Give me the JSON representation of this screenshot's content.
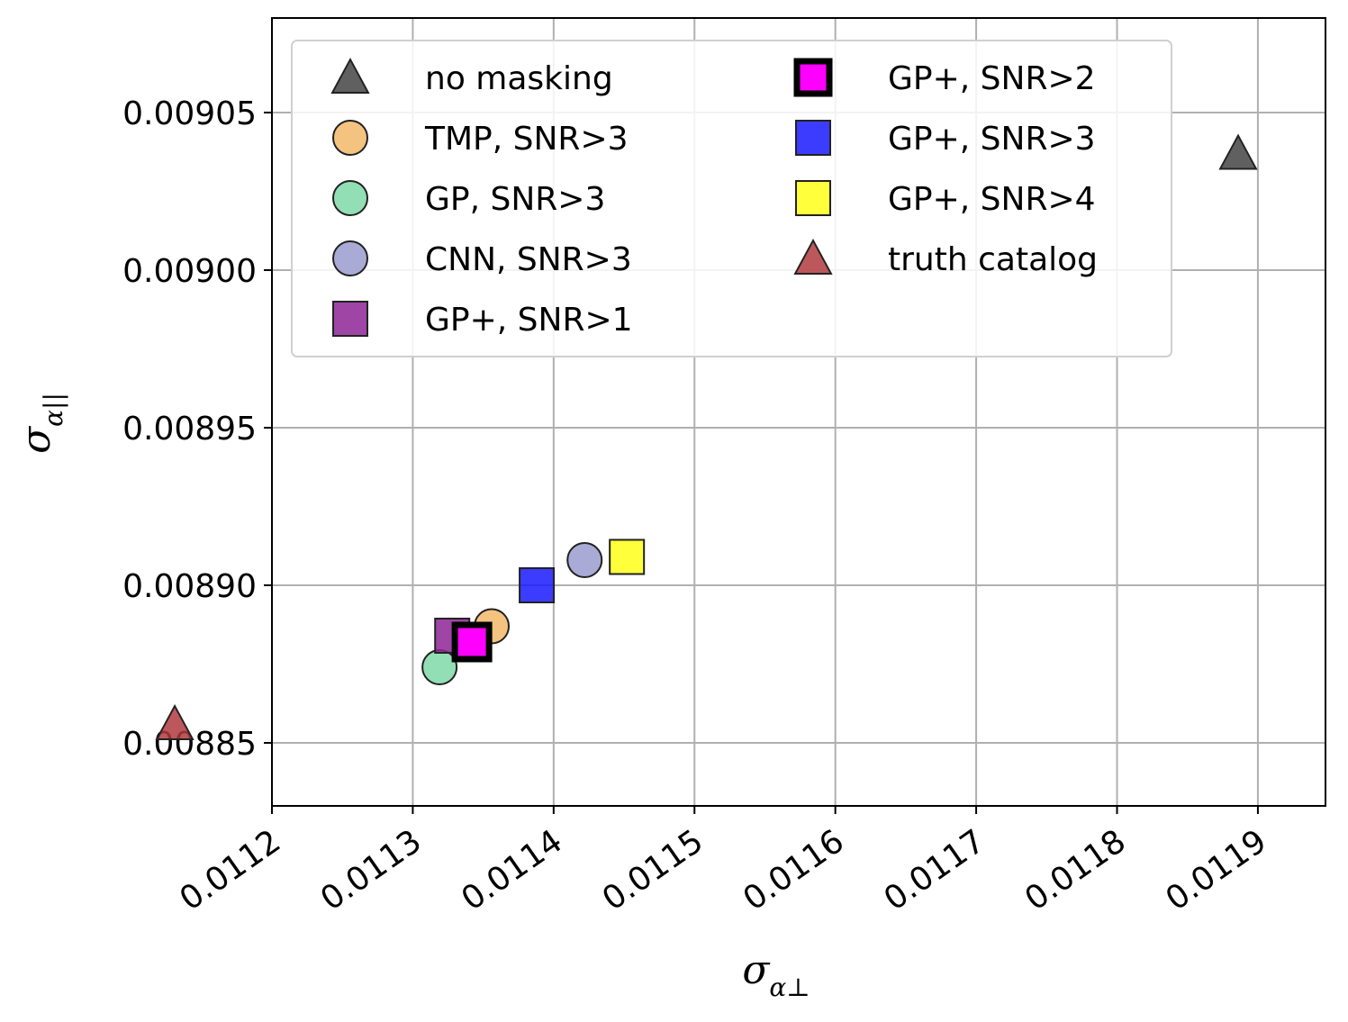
{
  "chart_data": {
    "type": "scatter",
    "xlabel": "σ",
    "xlabel_sub": "α⊥",
    "ylabel": "σ",
    "ylabel_sub": "α||",
    "xlim": [
      0.0112,
      0.011948
    ],
    "ylim": [
      0.00883,
      0.00908
    ],
    "x_ticks": [
      0.0112,
      0.0113,
      0.0114,
      0.0115,
      0.0116,
      0.0117,
      0.0118,
      0.0119
    ],
    "x_tick_labels": [
      "0.0112",
      "0.0113",
      "0.0114",
      "0.0115",
      "0.0116",
      "0.0117",
      "0.0118",
      "0.0119"
    ],
    "y_ticks": [
      0.00885,
      0.0089,
      0.00895,
      0.009,
      0.00905
    ],
    "y_tick_labels": [
      "0.00885",
      "0.00890",
      "0.00895",
      "0.00900",
      "0.00905"
    ],
    "grid": true,
    "legend_position": "top-left",
    "legend_columns": 2,
    "series": [
      {
        "name": "no masking",
        "marker": "triangle",
        "color": "#444444",
        "x": 0.011886,
        "y": 0.009037
      },
      {
        "name": "TMP, SNR>3",
        "marker": "circle",
        "color": "#F2B96A",
        "x": 0.011356,
        "y": 0.008887
      },
      {
        "name": "GP, SNR>3",
        "marker": "circle",
        "color": "#7FD9A8",
        "x": 0.011319,
        "y": 0.008874
      },
      {
        "name": "CNN, SNR>3",
        "marker": "circle",
        "color": "#9B9BD0",
        "x": 0.011422,
        "y": 0.008908
      },
      {
        "name": "GP+, SNR>1",
        "marker": "square",
        "color": "#8E2596",
        "x": 0.011328,
        "y": 0.008884
      },
      {
        "name": "GP+, SNR>2",
        "marker": "square-bold",
        "color": "#FF00FF",
        "x": 0.011342,
        "y": 0.008882
      },
      {
        "name": "GP+, SNR>3",
        "marker": "square",
        "color": "#1A1AFF",
        "x": 0.011388,
        "y": 0.0089
      },
      {
        "name": "GP+, SNR>4",
        "marker": "square",
        "color": "#FFFF1A",
        "x": 0.011452,
        "y": 0.008909
      },
      {
        "name": "truth catalog",
        "marker": "triangle",
        "color": "#B03A3F",
        "x": 0.011131,
        "y": 0.008856
      }
    ],
    "legend_order": [
      "no masking",
      "TMP, SNR>3",
      "GP, SNR>3",
      "CNN, SNR>3",
      "GP+, SNR>1",
      "GP+, SNR>2",
      "GP+, SNR>3",
      "GP+, SNR>4",
      "truth catalog"
    ],
    "plot_order": [
      "no masking",
      "truth catalog",
      "GP, SNR>3",
      "GP+, SNR>1",
      "TMP, SNR>3",
      "GP+, SNR>3",
      "CNN, SNR>3",
      "GP+, SNR>4",
      "GP+, SNR>2"
    ]
  }
}
